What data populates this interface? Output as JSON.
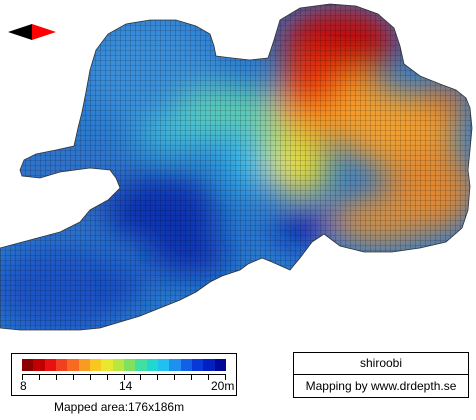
{
  "map": {
    "name": "shiroobi",
    "credit": "Mapping by www.drdepth.se",
    "mapped_area": "Mapped area:176x186m"
  },
  "legend": {
    "min_label": "8",
    "mid_label": "14",
    "max_label": "20m",
    "min_depth_m": 8,
    "mid_depth_m": 14,
    "max_depth_m": 20,
    "colors": [
      "#8b0000",
      "#c00000",
      "#e81010",
      "#f04020",
      "#f86a20",
      "#fa9a20",
      "#f8c820",
      "#e8e830",
      "#b8e840",
      "#80e060",
      "#40e0a0",
      "#20d8d0",
      "#20c0f0",
      "#2090f0",
      "#1060e8",
      "#0838d8",
      "#0020c0",
      "#000898"
    ]
  },
  "compass": {
    "icon": "compass-arrow-icon",
    "colors": [
      "#000000",
      "#ff0000"
    ]
  }
}
